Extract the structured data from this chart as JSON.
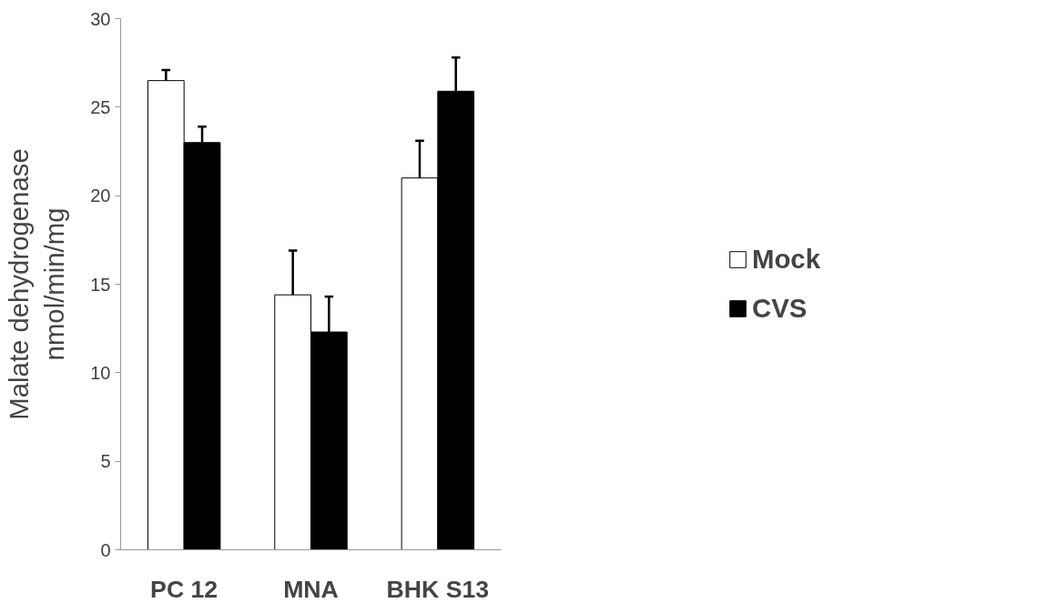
{
  "chart_data": {
    "type": "bar",
    "ylabel": "Malate dehydrogenase\nnmol/min/mg",
    "categories": [
      "PC 12",
      "MNA",
      "BHK S13"
    ],
    "series": [
      {
        "name": "Mock",
        "color": "#ffffff",
        "values": [
          26.5,
          14.4,
          21.0
        ],
        "errors": [
          [
            26.5,
            27.1
          ],
          [
            14.4,
            16.9
          ],
          [
            21.0,
            23.1
          ]
        ]
      },
      {
        "name": "CVS",
        "color": "#000000",
        "values": [
          23.0,
          12.3,
          25.9
        ],
        "errors": [
          [
            23.0,
            23.9
          ],
          [
            12.3,
            14.3
          ],
          [
            25.9,
            27.8
          ]
        ]
      }
    ],
    "ylim": [
      0,
      30
    ],
    "yticks": [
      0,
      5,
      10,
      15,
      20,
      25,
      30
    ],
    "grid": false,
    "legend": "right"
  }
}
